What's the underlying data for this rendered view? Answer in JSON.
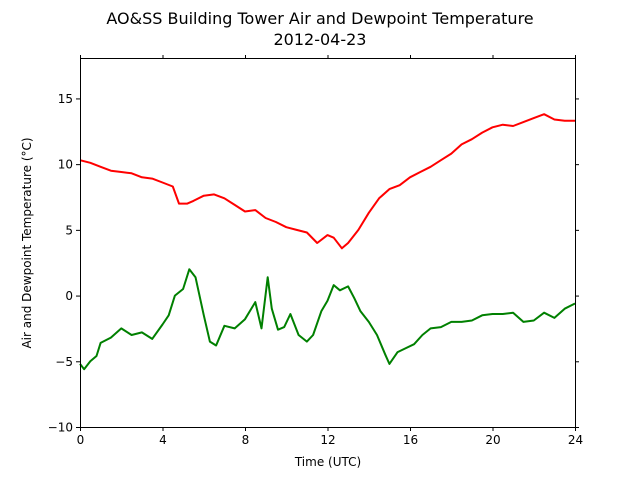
{
  "chart_data": {
    "type": "line",
    "title": "AO&SS Building Tower Air and Dewpoint Temperature",
    "subtitle": "2012-04-23",
    "xlabel": "Time (UTC)",
    "ylabel": "Air and Dewpoint Temperature (°C)",
    "xlim": [
      0,
      24
    ],
    "ylim": [
      -10,
      18
    ],
    "xticks": [
      0,
      4,
      8,
      12,
      16,
      20,
      24
    ],
    "yticks": [
      -10,
      -5,
      0,
      5,
      10,
      15
    ],
    "grid": false,
    "series": [
      {
        "color": "#ff0000",
        "x": [
          0,
          0.5,
          1,
          1.5,
          2,
          2.5,
          3,
          3.5,
          4,
          4.5,
          4.8,
          5.2,
          5.5,
          6,
          6.5,
          7,
          7.5,
          8,
          8.5,
          9,
          9.5,
          10,
          10.5,
          11,
          11.5,
          12,
          12.3,
          12.7,
          13,
          13.5,
          14,
          14.5,
          15,
          15.5,
          16,
          16.5,
          17,
          17.5,
          18,
          18.5,
          19,
          19.5,
          20,
          20.5,
          21,
          21.5,
          22,
          22.5,
          23,
          23.5,
          24
        ],
        "y": [
          10.3,
          10.1,
          9.8,
          9.5,
          9.4,
          9.3,
          9.0,
          8.9,
          8.6,
          8.3,
          7.0,
          7.0,
          7.2,
          7.6,
          7.7,
          7.4,
          6.9,
          6.4,
          6.5,
          5.9,
          5.6,
          5.2,
          5.0,
          4.8,
          4.0,
          4.6,
          4.4,
          3.6,
          4.0,
          5.0,
          6.3,
          7.4,
          8.1,
          8.4,
          9.0,
          9.4,
          9.8,
          10.3,
          10.8,
          11.5,
          11.9,
          12.4,
          12.8,
          13.0,
          12.9,
          13.2,
          13.5,
          13.8,
          13.4,
          13.3,
          13.3
        ]
      },
      {
        "color": "#008000",
        "x": [
          0,
          0.2,
          0.5,
          0.8,
          1,
          1.5,
          2,
          2.5,
          3,
          3.5,
          4,
          4.3,
          4.6,
          5,
          5.3,
          5.6,
          6,
          6.3,
          6.6,
          7,
          7.5,
          8,
          8.5,
          8.8,
          9.1,
          9.3,
          9.6,
          9.9,
          10.2,
          10.6,
          11,
          11.3,
          11.7,
          12,
          12.3,
          12.6,
          13,
          13.3,
          13.6,
          14,
          14.4,
          14.8,
          15,
          15.4,
          15.8,
          16.2,
          16.6,
          17,
          17.5,
          18,
          18.5,
          19,
          19.5,
          20,
          20.5,
          21,
          21.5,
          22,
          22.5,
          23,
          23.5,
          24
        ],
        "y": [
          -5.2,
          -5.6,
          -5.0,
          -4.6,
          -3.6,
          -3.2,
          -2.5,
          -3.0,
          -2.8,
          -3.3,
          -2.2,
          -1.5,
          0.0,
          0.5,
          2.0,
          1.4,
          -1.5,
          -3.5,
          -3.8,
          -2.3,
          -2.5,
          -1.8,
          -0.5,
          -2.5,
          1.4,
          -1.0,
          -2.6,
          -2.4,
          -1.4,
          -3.0,
          -3.5,
          -3.0,
          -1.2,
          -0.4,
          0.8,
          0.4,
          0.7,
          -0.2,
          -1.2,
          -2.0,
          -3.0,
          -4.5,
          -5.2,
          -4.3,
          -4.0,
          -3.7,
          -3.0,
          -2.5,
          -2.4,
          -2.0,
          -2.0,
          -1.9,
          -1.5,
          -1.4,
          -1.4,
          -1.3,
          -2.0,
          -1.9,
          -1.3,
          -1.7,
          -1.0,
          -0.6
        ]
      }
    ]
  }
}
